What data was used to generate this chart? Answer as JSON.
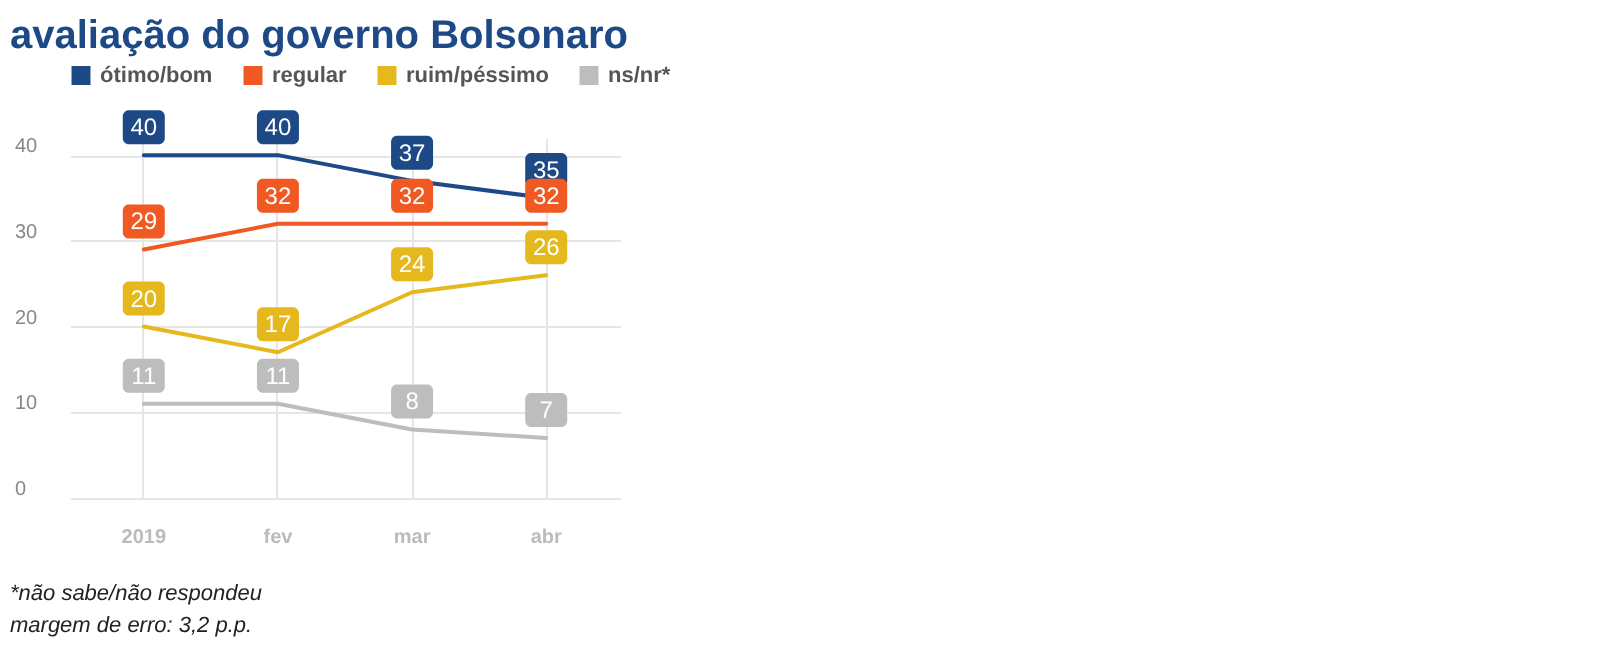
{
  "chart_data": {
    "type": "line",
    "title": "avaliação do governo Bolsonaro",
    "categories": [
      "2019",
      "fev",
      "mar",
      "abr"
    ],
    "series": [
      {
        "name": "ótimo/bom",
        "color": "#1d4a86",
        "values": [
          40,
          40,
          37,
          35
        ]
      },
      {
        "name": "regular",
        "color": "#f05a22",
        "values": [
          29,
          32,
          32,
          32
        ]
      },
      {
        "name": "ruim/péssimo",
        "color": "#e5b81e",
        "values": [
          20,
          17,
          24,
          26
        ]
      },
      {
        "name": "ns/nr*",
        "color": "#bdbdbd",
        "values": [
          11,
          11,
          8,
          7
        ]
      }
    ],
    "ylim": [
      0,
      42
    ],
    "yticks": [
      0,
      10,
      20,
      30,
      40
    ],
    "grid": true,
    "legend": "top left",
    "data_labels": true,
    "annotations": [
      "*não sabe/não respondeu",
      "margem de erro: 3,2 p.p."
    ]
  }
}
